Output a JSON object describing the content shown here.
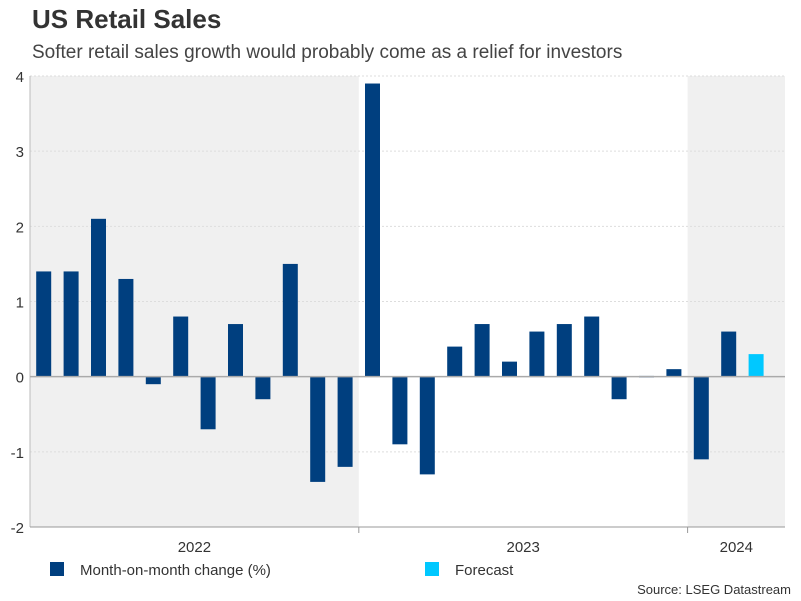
{
  "title": "US Retail Sales",
  "subtitle": "Softer retail sales growth would probably come as a relief for investors",
  "source": "Source: LSEG Datastream",
  "chart_data": {
    "type": "bar",
    "title": "US Retail Sales",
    "xlabel": "",
    "ylabel": "",
    "ylim": [
      -2,
      4
    ],
    "yticks": [
      -2,
      -1,
      0,
      1,
      2,
      3,
      4
    ],
    "grid": true,
    "legend_position": "bottom",
    "year_labels": [
      {
        "label": "2022",
        "months": 12,
        "shaded": true
      },
      {
        "label": "2023",
        "months": 12,
        "shaded": false
      },
      {
        "label": "2024",
        "months": 3,
        "shaded": true
      }
    ],
    "series": [
      {
        "name": "Month-on-month change (%)",
        "color": "#003f7f",
        "values": [
          1.4,
          1.4,
          2.1,
          1.3,
          -0.1,
          0.8,
          -0.7,
          0.7,
          -0.3,
          1.5,
          -1.4,
          -1.2,
          3.9,
          -0.9,
          -1.3,
          0.4,
          0.7,
          0.2,
          0.6,
          0.7,
          0.8,
          -0.3,
          0.0,
          0.1,
          -1.1,
          0.6,
          null
        ]
      },
      {
        "name": "Forecast",
        "color": "#00c8ff",
        "values": [
          null,
          null,
          null,
          null,
          null,
          null,
          null,
          null,
          null,
          null,
          null,
          null,
          null,
          null,
          null,
          null,
          null,
          null,
          null,
          null,
          null,
          null,
          null,
          null,
          null,
          null,
          0.3
        ]
      }
    ]
  }
}
